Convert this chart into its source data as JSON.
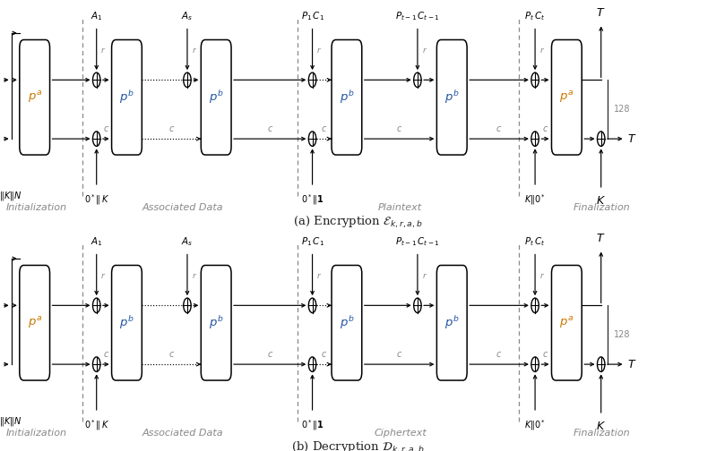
{
  "bg_color": "#ffffff",
  "box_color": "#ffffff",
  "box_edge": "#000000",
  "orange_color": "#c87800",
  "blue_color": "#2255a0",
  "gray_color": "#888888",
  "black": "#000000",
  "section_labels_enc": [
    "Initialization",
    "Associated Data",
    "Plaintext",
    "Finalization"
  ],
  "section_labels_dec": [
    "Initialization",
    "Associated Data",
    "Ciphertext",
    "Finalization"
  ],
  "fig_width": 7.99,
  "fig_height": 5.04,
  "dpi": 100
}
